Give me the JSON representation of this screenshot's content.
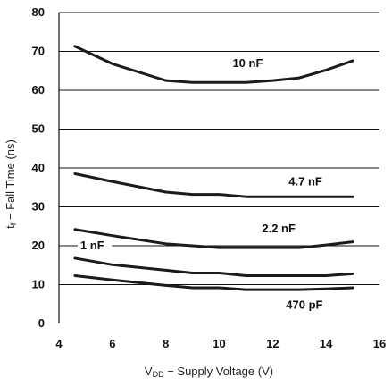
{
  "chart_data": {
    "type": "line",
    "title": "",
    "xlabel_main": "V",
    "xlabel_sub": "DD",
    "xlabel_rest": " − Supply Voltage (V)",
    "ylabel_main": "t",
    "ylabel_sub": "f",
    "ylabel_rest": " − Fall Time (ns)",
    "xlim": [
      4,
      16
    ],
    "ylim": [
      0,
      80
    ],
    "xticks": [
      4,
      6,
      8,
      10,
      12,
      14,
      16
    ],
    "yticks": [
      0,
      10,
      20,
      30,
      40,
      50,
      60,
      70,
      80
    ],
    "grid": "horizontal",
    "series": [
      {
        "name": "10 nF",
        "x": [
          4.6,
          6,
          8,
          9,
          11,
          12,
          13,
          14,
          15
        ],
        "y": [
          71.3,
          66.8,
          62.5,
          62,
          62,
          62.5,
          63.2,
          65.2,
          67.6
        ],
        "label_pos": [
          10.5,
          66
        ]
      },
      {
        "name": "4.7 nF",
        "x": [
          4.6,
          6,
          8,
          9,
          10,
          11,
          12,
          13,
          14,
          15
        ],
        "y": [
          38.5,
          36.5,
          33.8,
          33.2,
          33.2,
          32.6,
          32.6,
          32.6,
          32.6,
          32.6
        ],
        "label_pos": [
          12.6,
          35.5
        ]
      },
      {
        "name": "2.2 nF",
        "x": [
          4.6,
          6,
          8,
          9,
          10,
          11,
          12,
          13,
          14,
          15
        ],
        "y": [
          24.2,
          22.6,
          20.5,
          20,
          19.5,
          19.5,
          19.5,
          19.5,
          20.2,
          21
        ],
        "label_pos": [
          11.6,
          23.5
        ]
      },
      {
        "name": "1 nF",
        "x": [
          4.6,
          6,
          8,
          9,
          10,
          11,
          12,
          13,
          14,
          15
        ],
        "y": [
          16.8,
          15.1,
          13.7,
          13,
          13,
          12.3,
          12.3,
          12.3,
          12.3,
          12.8
        ],
        "label_pos": [
          4.8,
          19.1
        ]
      },
      {
        "name": "470 pF",
        "x": [
          4.6,
          6,
          8,
          9,
          10,
          11,
          12,
          13,
          14,
          15
        ],
        "y": [
          12.3,
          11.2,
          9.8,
          9.2,
          9.2,
          8.7,
          8.7,
          8.7,
          8.9,
          9.2
        ],
        "label_pos": [
          12.5,
          3.8
        ]
      }
    ]
  }
}
